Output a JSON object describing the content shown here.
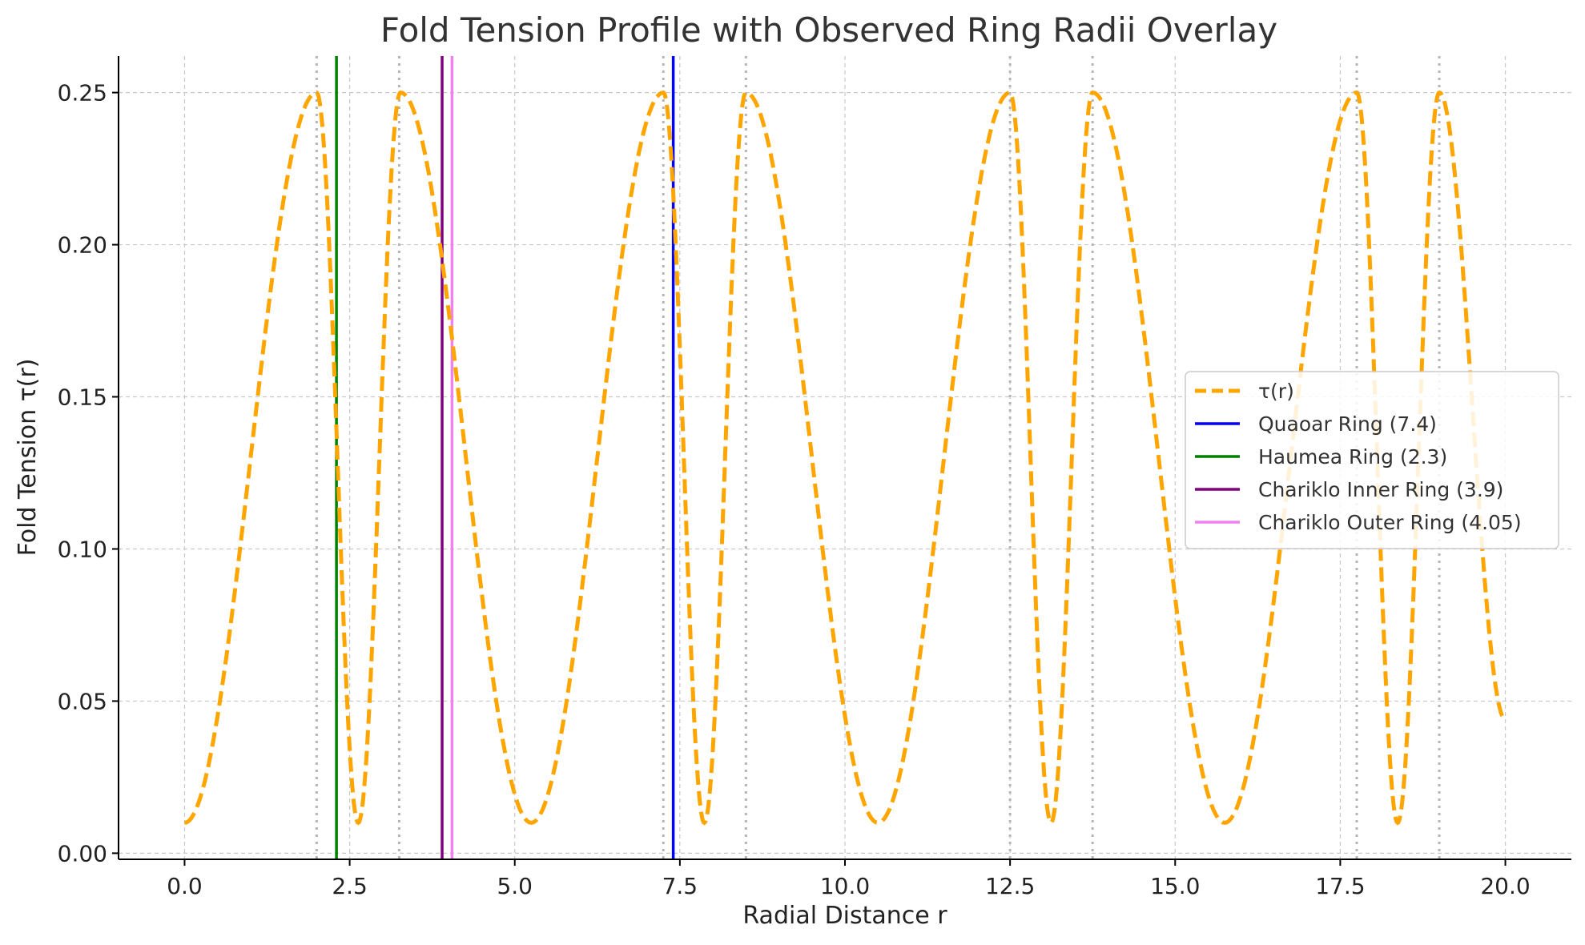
{
  "chart_data": {
    "type": "line",
    "title": "Fold Tension Profile with Observed Ring Radii Overlay",
    "xlabel": "Radial Distance r",
    "ylabel": "Fold Tension τ(r)",
    "xlim": [
      -1.0,
      21.0
    ],
    "ylim": [
      -0.002,
      0.262
    ],
    "xticks": [
      0.0,
      2.5,
      5.0,
      7.5,
      10.0,
      12.5,
      15.0,
      17.5,
      20.0
    ],
    "xtick_labels": [
      "0.0",
      "2.5",
      "5.0",
      "7.5",
      "10.0",
      "12.5",
      "15.0",
      "17.5",
      "20.0"
    ],
    "yticks": [
      0.0,
      0.05,
      0.1,
      0.15,
      0.2,
      0.25
    ],
    "ytick_labels": [
      "0.00",
      "0.05",
      "0.10",
      "0.15",
      "0.20",
      "0.25"
    ],
    "grid": true,
    "legend_position": "center-right",
    "curve": {
      "name": "τ(r)",
      "color": "#FFA500",
      "style": "dashed",
      "anchors": [
        [
          0.0,
          0.01
        ],
        [
          2.0,
          0.25
        ],
        [
          2.63,
          0.01
        ],
        [
          3.27,
          0.25
        ],
        [
          5.25,
          0.01
        ],
        [
          7.25,
          0.25
        ],
        [
          7.87,
          0.01
        ],
        [
          8.5,
          0.25
        ],
        [
          10.5,
          0.01
        ],
        [
          12.5,
          0.25
        ],
        [
          13.12,
          0.01
        ],
        [
          13.75,
          0.25
        ],
        [
          15.75,
          0.01
        ],
        [
          17.75,
          0.25
        ],
        [
          18.37,
          0.01
        ],
        [
          19.0,
          0.25
        ],
        [
          20.0,
          0.044
        ]
      ]
    },
    "peak_markers": {
      "style": "dotted",
      "color": "#b5b5b5",
      "x": [
        2.0,
        3.25,
        7.25,
        8.5,
        12.5,
        13.75,
        17.75,
        19.0
      ]
    },
    "rings": [
      {
        "name": "Quaoar Ring (7.4)",
        "x": 7.4,
        "color": "#0000FF"
      },
      {
        "name": "Haumea Ring (2.3)",
        "x": 2.3,
        "color": "#008000"
      },
      {
        "name": "Chariklo Inner Ring (3.9)",
        "x": 3.9,
        "color": "#800080"
      },
      {
        "name": "Chariklo Outer Ring (4.05)",
        "x": 4.05,
        "color": "#EE82EE"
      }
    ]
  }
}
